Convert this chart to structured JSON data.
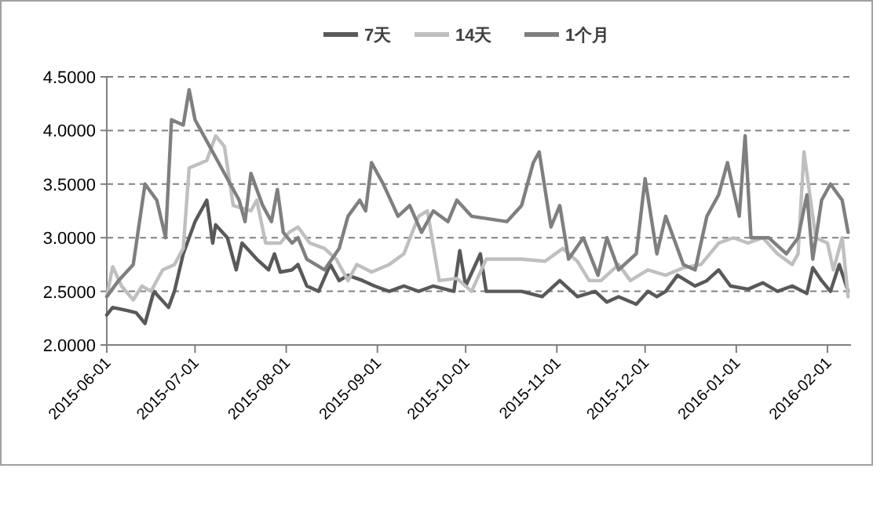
{
  "chart_data": {
    "type": "line",
    "legend": "top",
    "grid": "y",
    "line_style": "solid",
    "marker": "none",
    "xlim": [
      "2015-06-01",
      "2016-02-09"
    ],
    "xticks": [
      {
        "value": "2015-06-01",
        "label": "2015-06-01"
      },
      {
        "value": "2015-07-01",
        "label": "2015-07-01"
      },
      {
        "value": "2015-08-01",
        "label": "2015-08-01"
      },
      {
        "value": "2015-09-01",
        "label": "2015-09-01"
      },
      {
        "value": "2015-10-01",
        "label": "2015-10-01"
      },
      {
        "value": "2015-11-01",
        "label": "2015-11-01"
      },
      {
        "value": "2015-12-01",
        "label": "2015-12-01"
      },
      {
        "value": "2016-01-01",
        "label": "2016-01-01"
      },
      {
        "value": "2016-02-01",
        "label": "2016-02-01"
      }
    ],
    "ylim": [
      2,
      4.5
    ],
    "yticks": [
      {
        "value": 2,
        "label": "2.0000"
      },
      {
        "value": 2.5,
        "label": "2.5000"
      },
      {
        "value": 3,
        "label": "3.0000"
      },
      {
        "value": 3.5,
        "label": "3.5000"
      },
      {
        "value": 4,
        "label": "4.0000"
      },
      {
        "value": 4.5,
        "label": "4.5000"
      }
    ],
    "series": [
      {
        "name": "7天",
        "color": "#595959",
        "x": [
          "2015-06-01",
          "2015-06-03",
          "2015-06-08",
          "2015-06-11",
          "2015-06-14",
          "2015-06-17",
          "2015-06-22",
          "2015-06-24",
          "2015-06-27",
          "2015-07-01",
          "2015-07-05",
          "2015-07-07",
          "2015-07-08",
          "2015-07-12",
          "2015-07-15",
          "2015-07-17",
          "2015-07-22",
          "2015-07-26",
          "2015-07-28",
          "2015-07-30",
          "2015-08-03",
          "2015-08-05",
          "2015-08-08",
          "2015-08-12",
          "2015-08-16",
          "2015-08-19",
          "2015-08-22",
          "2015-08-27",
          "2015-08-31",
          "2015-09-05",
          "2015-09-10",
          "2015-09-15",
          "2015-09-20",
          "2015-09-27",
          "2015-09-29",
          "2015-10-01",
          "2015-10-06",
          "2015-10-08",
          "2015-10-20",
          "2015-10-27",
          "2015-11-02",
          "2015-11-08",
          "2015-11-14",
          "2015-11-18",
          "2015-11-22",
          "2015-11-28",
          "2015-12-02",
          "2015-12-05",
          "2015-12-08",
          "2015-12-12",
          "2015-12-18",
          "2015-12-22",
          "2015-12-26",
          "2015-12-30",
          "2016-01-05",
          "2016-01-10",
          "2016-01-15",
          "2016-01-20",
          "2016-01-25",
          "2016-01-27",
          "2016-01-30",
          "2016-02-02",
          "2016-02-05",
          "2016-02-08"
        ],
        "values": [
          2.28,
          2.35,
          2.32,
          2.3,
          2.2,
          2.5,
          2.35,
          2.5,
          2.85,
          3.15,
          3.35,
          2.95,
          3.12,
          3.0,
          2.7,
          2.95,
          2.8,
          2.7,
          2.85,
          2.68,
          2.7,
          2.75,
          2.55,
          2.5,
          2.75,
          2.6,
          2.65,
          2.6,
          2.55,
          2.5,
          2.55,
          2.5,
          2.55,
          2.5,
          2.88,
          2.55,
          2.85,
          2.5,
          2.5,
          2.45,
          2.6,
          2.45,
          2.5,
          2.4,
          2.45,
          2.38,
          2.5,
          2.45,
          2.5,
          2.65,
          2.55,
          2.6,
          2.7,
          2.55,
          2.52,
          2.58,
          2.5,
          2.55,
          2.48,
          2.72,
          2.6,
          2.5,
          2.75,
          2.5
        ]
      },
      {
        "name": "14天",
        "color": "#bfbfbf",
        "x": [
          "2015-06-01",
          "2015-06-03",
          "2015-06-06",
          "2015-06-10",
          "2015-06-13",
          "2015-06-16",
          "2015-06-20",
          "2015-06-24",
          "2015-06-27",
          "2015-06-29",
          "2015-07-05",
          "2015-07-08",
          "2015-07-11",
          "2015-07-14",
          "2015-07-20",
          "2015-07-22",
          "2015-07-25",
          "2015-07-30",
          "2015-08-02",
          "2015-08-05",
          "2015-08-09",
          "2015-08-14",
          "2015-08-18",
          "2015-08-22",
          "2015-08-25",
          "2015-08-30",
          "2015-09-05",
          "2015-09-10",
          "2015-09-15",
          "2015-09-18",
          "2015-09-22",
          "2015-09-28",
          "2015-10-03",
          "2015-10-08",
          "2015-10-20",
          "2015-10-28",
          "2015-11-03",
          "2015-11-08",
          "2015-11-12",
          "2015-11-16",
          "2015-11-22",
          "2015-11-26",
          "2015-12-02",
          "2015-12-08",
          "2015-12-14",
          "2015-12-20",
          "2015-12-26",
          "2015-12-31",
          "2016-01-05",
          "2016-01-10",
          "2016-01-15",
          "2016-01-20",
          "2016-01-22",
          "2016-01-24",
          "2016-01-28",
          "2016-02-01",
          "2016-02-03",
          "2016-02-06",
          "2016-02-08"
        ],
        "values": [
          2.45,
          2.73,
          2.55,
          2.42,
          2.55,
          2.5,
          2.7,
          2.75,
          2.9,
          3.65,
          3.72,
          3.95,
          3.85,
          3.3,
          3.25,
          3.35,
          2.95,
          2.95,
          3.05,
          3.1,
          2.95,
          2.9,
          2.8,
          2.6,
          2.75,
          2.68,
          2.75,
          2.85,
          3.2,
          3.25,
          2.6,
          2.62,
          2.5,
          2.8,
          2.8,
          2.78,
          2.9,
          2.78,
          2.6,
          2.6,
          2.75,
          2.6,
          2.7,
          2.65,
          2.72,
          2.75,
          2.95,
          3.0,
          2.95,
          3.0,
          2.85,
          2.75,
          2.85,
          3.8,
          3.0,
          2.95,
          2.7,
          3.0,
          2.45
        ]
      },
      {
        "name": "1个月",
        "color": "#7f7f7f",
        "x": [
          "2015-06-01",
          "2015-06-05",
          "2015-06-10",
          "2015-06-14",
          "2015-06-18",
          "2015-06-21",
          "2015-06-23",
          "2015-06-27",
          "2015-06-29",
          "2015-07-01",
          "2015-07-04",
          "2015-07-07",
          "2015-07-12",
          "2015-07-16",
          "2015-07-18",
          "2015-07-20",
          "2015-07-24",
          "2015-07-27",
          "2015-07-29",
          "2015-07-31",
          "2015-08-03",
          "2015-08-05",
          "2015-08-08",
          "2015-08-14",
          "2015-08-19",
          "2015-08-22",
          "2015-08-26",
          "2015-08-28",
          "2015-08-30",
          "2015-09-03",
          "2015-09-08",
          "2015-09-12",
          "2015-09-16",
          "2015-09-20",
          "2015-09-25",
          "2015-09-28",
          "2015-10-03",
          "2015-10-15",
          "2015-10-20",
          "2015-10-24",
          "2015-10-26",
          "2015-10-30",
          "2015-11-02",
          "2015-11-05",
          "2015-11-10",
          "2015-11-15",
          "2015-11-18",
          "2015-11-22",
          "2015-11-28",
          "2015-12-01",
          "2015-12-05",
          "2015-12-08",
          "2015-12-14",
          "2015-12-18",
          "2015-12-22",
          "2015-12-26",
          "2015-12-29",
          "2016-01-02",
          "2016-01-04",
          "2016-01-06",
          "2016-01-12",
          "2016-01-18",
          "2016-01-22",
          "2016-01-25",
          "2016-01-27",
          "2016-01-30",
          "2016-02-02",
          "2016-02-06",
          "2016-02-08"
        ],
        "values": [
          2.45,
          2.6,
          2.75,
          3.5,
          3.35,
          3.0,
          4.1,
          4.05,
          4.38,
          4.1,
          3.95,
          3.8,
          3.55,
          3.35,
          3.15,
          3.6,
          3.3,
          3.15,
          3.45,
          3.05,
          2.95,
          3.0,
          2.8,
          2.7,
          2.9,
          3.2,
          3.35,
          3.25,
          3.7,
          3.5,
          3.2,
          3.3,
          3.05,
          3.25,
          3.15,
          3.35,
          3.2,
          3.15,
          3.3,
          3.7,
          3.8,
          3.1,
          3.3,
          2.8,
          3.0,
          2.65,
          3.0,
          2.7,
          2.85,
          3.55,
          2.85,
          3.2,
          2.75,
          2.7,
          3.2,
          3.4,
          3.7,
          3.2,
          3.95,
          3.0,
          3.0,
          2.85,
          3.0,
          3.4,
          2.8,
          3.35,
          3.5,
          3.35,
          3.05
        ]
      }
    ]
  }
}
